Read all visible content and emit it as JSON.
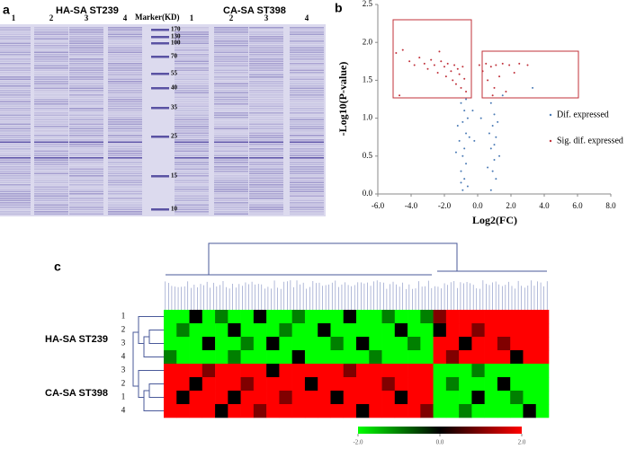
{
  "panel_labels": [
    "a",
    "b",
    "c"
  ],
  "gel": {
    "left_title": "HA-SA ST239",
    "right_title": "CA-SA ST398",
    "marker_title": "Marker(KD)",
    "left_lanes": [
      "1",
      "2",
      "3",
      "4"
    ],
    "right_lanes": [
      "1",
      "2",
      "3",
      "4"
    ],
    "marker_sizes": [
      170,
      130,
      100,
      70,
      55,
      40,
      35,
      25,
      15,
      10
    ]
  },
  "chart_data": {
    "type": "scatter",
    "xlabel": "Log2(FC)",
    "ylabel": "-Log10(P-value)",
    "xlim": [
      -6,
      8
    ],
    "ylim": [
      0,
      2.5
    ],
    "xticks": [
      {
        "value": -6,
        "label": "-6.0"
      },
      {
        "value": -4,
        "label": "-4.0"
      },
      {
        "value": -2,
        "label": "-2.0"
      },
      {
        "value": 0,
        "label": "0.0"
      },
      {
        "value": 2,
        "label": "2.0"
      },
      {
        "value": 4,
        "label": "4.0"
      },
      {
        "value": 6,
        "label": "6.0"
      },
      {
        "value": 8,
        "label": "8.0"
      }
    ],
    "yticks": [
      {
        "value": 0,
        "label": "0.0"
      },
      {
        "value": 0.5,
        "label": "0.5"
      },
      {
        "value": 1,
        "label": "1.0"
      },
      {
        "value": 1.5,
        "label": "1.5"
      },
      {
        "value": 2,
        "label": "2.0"
      },
      {
        "value": 2.5,
        "label": "2.5"
      }
    ],
    "series": [
      {
        "name": "Dif. expressed",
        "color": "#4a7ab5",
        "x": [
          -1.0,
          -0.8,
          -0.9,
          -0.7,
          -1.1,
          -0.8,
          -0.9,
          -0.7,
          -1.0,
          -0.8,
          -0.6,
          -0.9,
          -1.2,
          -0.6,
          -1.3,
          -0.5,
          -1.0,
          -0.7,
          0.8,
          1.0,
          0.9,
          1.1,
          0.8,
          1.0,
          0.9,
          1.1,
          0.8,
          1.2,
          0.7,
          1.3,
          1.0,
          0.6,
          -0.3,
          0.2,
          -0.2,
          3.3,
          1.5
        ],
        "values": [
          1.2,
          1.1,
          0.95,
          0.8,
          0.7,
          0.6,
          0.5,
          0.4,
          0.3,
          0.2,
          0.1,
          0.05,
          0.9,
          1.0,
          0.55,
          0.75,
          0.15,
          1.25,
          1.2,
          1.05,
          0.9,
          0.75,
          0.6,
          0.45,
          0.3,
          0.2,
          0.05,
          0.95,
          0.8,
          0.5,
          0.65,
          0.35,
          1.1,
          1.0,
          0.7,
          1.4,
          1.3
        ]
      },
      {
        "name": "Sig. dif. expressed",
        "color": "#c0303a",
        "x": [
          -4.9,
          -4.5,
          -4.1,
          -3.8,
          -3.5,
          -3.2,
          -3.0,
          -2.8,
          -2.6,
          -2.4,
          -2.2,
          -2.0,
          -1.9,
          -1.8,
          -1.6,
          -1.5,
          -1.4,
          -1.3,
          -1.2,
          -1.1,
          -1.0,
          -0.9,
          -0.8,
          -0.7,
          -4.7,
          -2.3,
          0.1,
          0.3,
          0.5,
          0.6,
          0.8,
          1.0,
          1.1,
          1.3,
          1.5,
          1.7,
          1.9,
          2.2,
          2.5,
          3.0,
          0.9
        ],
        "values": [
          1.86,
          1.9,
          1.75,
          1.7,
          1.8,
          1.72,
          1.65,
          1.77,
          1.7,
          1.6,
          1.75,
          1.68,
          1.55,
          1.72,
          1.62,
          1.5,
          1.7,
          1.45,
          1.65,
          1.58,
          1.4,
          1.68,
          1.52,
          1.35,
          1.3,
          1.88,
          1.7,
          1.62,
          1.72,
          1.5,
          1.68,
          1.4,
          1.7,
          1.55,
          1.72,
          1.35,
          1.7,
          1.6,
          1.72,
          1.7,
          1.3
        ]
      }
    ]
  },
  "heatmap": {
    "group_labels": [
      "HA-SA ST239",
      "CA-SA ST398"
    ],
    "row_labels": [
      "1",
      "2",
      "3",
      "4",
      "3",
      "2",
      "1",
      "4"
    ],
    "colorbar_ticks": [
      {
        "value": -2,
        "label": "-2.0"
      },
      {
        "value": 0,
        "label": "0.0"
      },
      {
        "value": 2,
        "label": "2.0"
      }
    ],
    "values": [
      [
        -2,
        -2,
        0,
        -2,
        -1,
        -2,
        -2,
        0,
        -2,
        -2,
        -1,
        -2,
        -2,
        -2,
        0,
        -2,
        -2,
        -1,
        -2,
        -2,
        -1,
        1,
        2,
        2,
        2,
        2,
        2,
        2,
        2,
        2
      ],
      [
        -2,
        -1,
        -2,
        -2,
        -2,
        0,
        -2,
        -2,
        -2,
        -1,
        -2,
        -2,
        0,
        -2,
        -2,
        -2,
        -2,
        -2,
        0,
        -2,
        -2,
        0,
        2,
        2,
        1,
        2,
        2,
        2,
        2,
        2
      ],
      [
        -2,
        -2,
        -2,
        0,
        -2,
        -2,
        -1,
        -2,
        0,
        -2,
        -2,
        -2,
        -2,
        -1,
        -2,
        0,
        -2,
        -2,
        -2,
        -1,
        -2,
        2,
        2,
        0,
        2,
        2,
        1,
        2,
        2,
        2
      ],
      [
        -1,
        -2,
        -2,
        -2,
        -2,
        -1,
        -2,
        -2,
        -2,
        -2,
        0,
        -2,
        -2,
        -2,
        -2,
        -2,
        -1,
        -2,
        -2,
        -2,
        -2,
        2,
        1,
        2,
        2,
        2,
        2,
        0,
        2,
        2
      ],
      [
        2,
        2,
        2,
        1,
        2,
        2,
        2,
        2,
        0,
        2,
        2,
        2,
        2,
        2,
        1,
        2,
        2,
        2,
        2,
        2,
        2,
        -2,
        -2,
        -2,
        -1,
        -2,
        -2,
        -2,
        -2,
        -2
      ],
      [
        2,
        2,
        0,
        2,
        2,
        2,
        1,
        2,
        2,
        2,
        2,
        0,
        2,
        2,
        2,
        2,
        2,
        1,
        2,
        2,
        2,
        -2,
        -1,
        -2,
        -2,
        -2,
        0,
        -2,
        -2,
        -2
      ],
      [
        2,
        0,
        2,
        2,
        2,
        0,
        2,
        2,
        2,
        1,
        2,
        2,
        2,
        0,
        2,
        2,
        2,
        2,
        0,
        2,
        2,
        -2,
        -2,
        -2,
        0,
        -2,
        -2,
        -1,
        -2,
        -2
      ],
      [
        2,
        2,
        2,
        2,
        0,
        2,
        2,
        1,
        2,
        2,
        2,
        2,
        2,
        2,
        2,
        0,
        2,
        2,
        2,
        2,
        1,
        -2,
        -2,
        -1,
        -2,
        -2,
        -2,
        -2,
        0,
        -2
      ]
    ]
  }
}
